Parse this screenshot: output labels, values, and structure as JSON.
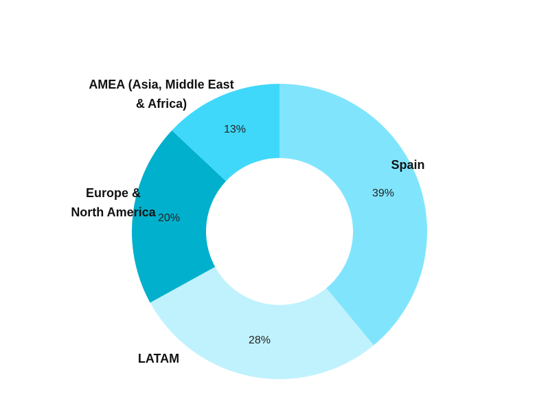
{
  "chart_data": {
    "type": "donut",
    "categories": [
      "Spain",
      "LATAM",
      "Europe &\nNorth America",
      "AMEA (Asia, Middle East\n& Africa)"
    ],
    "values": [
      39,
      28,
      20,
      13
    ],
    "value_labels": [
      "39%",
      "28%",
      "20%",
      "13%"
    ],
    "colors": [
      "#80e5fc",
      "#c0f2fd",
      "#00b0cc",
      "#3fd8fb"
    ]
  }
}
